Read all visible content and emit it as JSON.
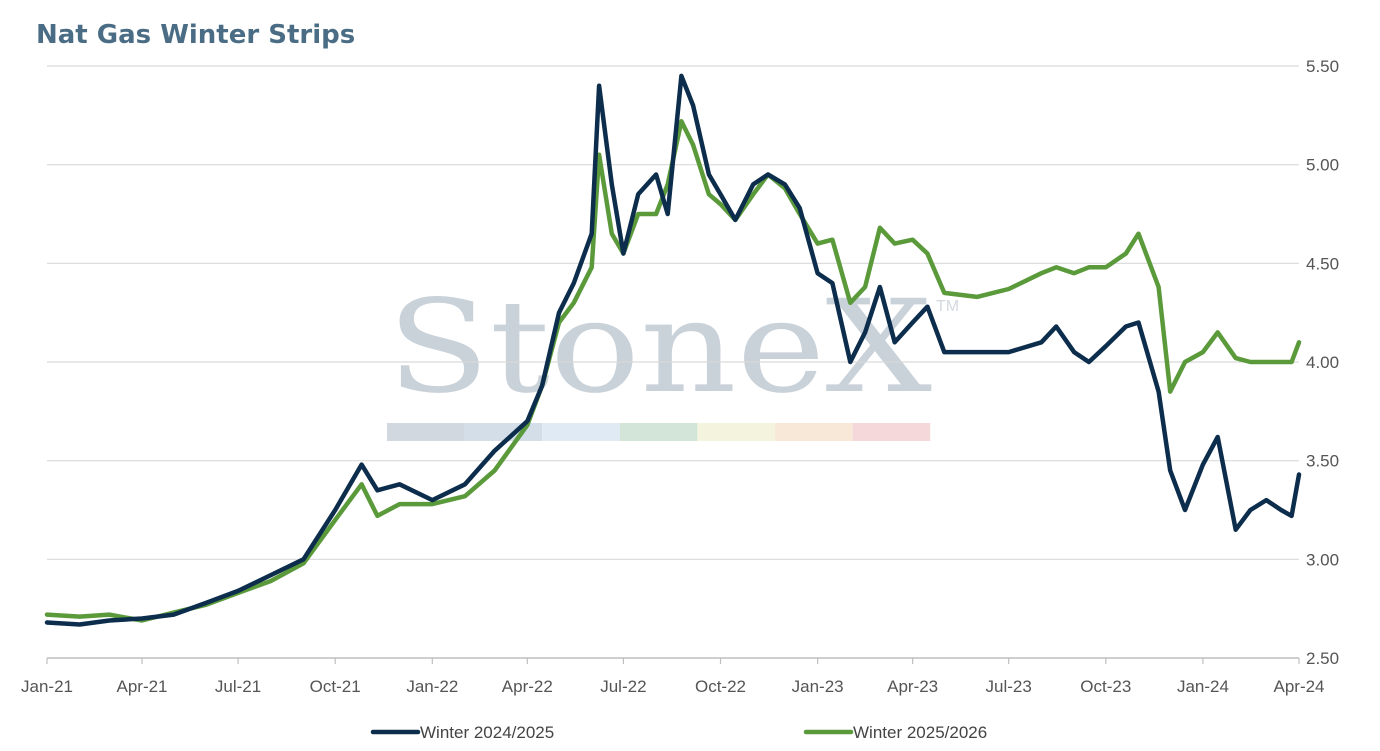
{
  "chart_data": {
    "type": "line",
    "title": "Nat Gas Winter Strips",
    "xlabel": "",
    "ylabel": "",
    "x_range": [
      "2021-01-01",
      "2024-04-01"
    ],
    "x_tick_labels": [
      "Jan-21",
      "Apr-21",
      "Jul-21",
      "Oct-21",
      "Jan-22",
      "Apr-22",
      "Jul-22",
      "Oct-22",
      "Jan-23",
      "Apr-23",
      "Jul-23",
      "Oct-23",
      "Jan-24",
      "Apr-24"
    ],
    "y_tick_labels": [
      "2.50",
      "3.00",
      "3.50",
      "4.00",
      "4.50",
      "5.00",
      "5.50"
    ],
    "ylim": [
      2.5,
      5.5
    ],
    "y_axis_side": "right",
    "grid": "horizontal",
    "legend": "bottom",
    "x": [
      "2021-01-01",
      "2021-02-01",
      "2021-03-01",
      "2021-04-01",
      "2021-05-01",
      "2021-06-01",
      "2021-07-01",
      "2021-08-01",
      "2021-09-01",
      "2021-10-01",
      "2021-10-26",
      "2021-11-10",
      "2021-12-01",
      "2022-01-01",
      "2022-02-01",
      "2022-03-01",
      "2022-04-01",
      "2022-04-15",
      "2022-05-01",
      "2022-05-15",
      "2022-06-01",
      "2022-06-08",
      "2022-06-20",
      "2022-07-01",
      "2022-07-15",
      "2022-08-01",
      "2022-08-12",
      "2022-08-25",
      "2022-09-05",
      "2022-09-20",
      "2022-10-01",
      "2022-10-15",
      "2022-11-01",
      "2022-11-15",
      "2022-12-01",
      "2022-12-15",
      "2023-01-01",
      "2023-01-15",
      "2023-02-01",
      "2023-02-15",
      "2023-03-01",
      "2023-03-15",
      "2023-04-01",
      "2023-04-15",
      "2023-05-01",
      "2023-06-01",
      "2023-07-01",
      "2023-08-01",
      "2023-08-15",
      "2023-09-01",
      "2023-09-15",
      "2023-10-01",
      "2023-10-20",
      "2023-11-01",
      "2023-11-20",
      "2023-12-01",
      "2023-12-15",
      "2024-01-01",
      "2024-01-15",
      "2024-02-01",
      "2024-02-15",
      "2024-03-01",
      "2024-03-15",
      "2024-03-25",
      "2024-04-01"
    ],
    "series": [
      {
        "name": "Winter 2024/2025",
        "color": "#0d2d4d",
        "values": [
          2.68,
          2.67,
          2.69,
          2.7,
          2.72,
          2.78,
          2.84,
          2.92,
          3.0,
          3.25,
          3.48,
          3.35,
          3.38,
          3.3,
          3.38,
          3.55,
          3.7,
          3.88,
          4.25,
          4.4,
          4.65,
          5.4,
          4.9,
          4.55,
          4.85,
          4.95,
          4.75,
          5.45,
          5.3,
          4.95,
          4.85,
          4.72,
          4.9,
          4.95,
          4.9,
          4.78,
          4.45,
          4.4,
          4.0,
          4.15,
          4.38,
          4.1,
          4.2,
          4.28,
          4.05,
          4.05,
          4.05,
          4.1,
          4.18,
          4.05,
          4.0,
          4.08,
          4.18,
          4.2,
          3.85,
          3.45,
          3.25,
          3.48,
          3.62,
          3.15,
          3.25,
          3.3,
          3.25,
          3.22,
          3.43
        ]
      },
      {
        "name": "Winter 2025/2026",
        "color": "#5b9a3a",
        "values": [
          2.72,
          2.71,
          2.72,
          2.69,
          2.73,
          2.77,
          2.83,
          2.89,
          2.98,
          3.2,
          3.38,
          3.22,
          3.28,
          3.28,
          3.32,
          3.45,
          3.68,
          3.88,
          4.2,
          4.3,
          4.48,
          5.05,
          4.65,
          4.55,
          4.75,
          4.75,
          4.9,
          5.22,
          5.1,
          4.85,
          4.8,
          4.72,
          4.85,
          4.95,
          4.88,
          4.75,
          4.6,
          4.62,
          4.3,
          4.38,
          4.68,
          4.6,
          4.62,
          4.55,
          4.35,
          4.33,
          4.37,
          4.45,
          4.48,
          4.45,
          4.48,
          4.48,
          4.55,
          4.65,
          4.38,
          3.85,
          4.0,
          4.05,
          4.15,
          4.02,
          4.0,
          4.0,
          4.0,
          4.0,
          4.1
        ]
      }
    ]
  },
  "watermark": {
    "brand": "StoneX",
    "trademark": "TM",
    "stripe_colors": [
      "#d1d8e0",
      "#d3dee9",
      "#e0eaf4",
      "#d3e4d8",
      "#f4f4de",
      "#f8e8d8",
      "#f4d8da"
    ]
  },
  "colors": {
    "title": "#4a6d85",
    "grid": "#d9d9d9",
    "axis": "#bfbfbf"
  }
}
